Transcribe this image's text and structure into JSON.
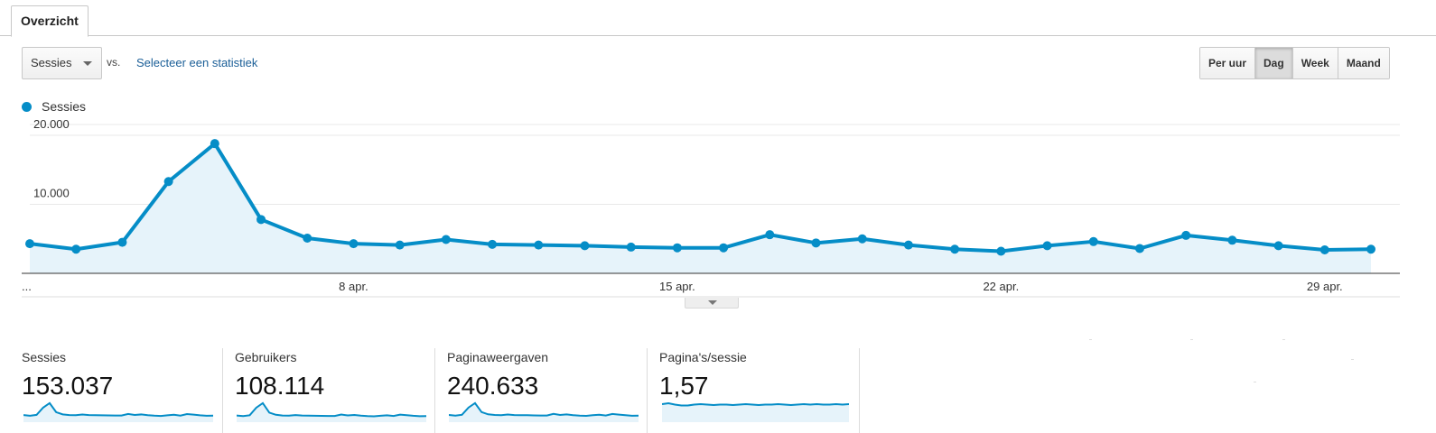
{
  "tabs": [
    {
      "label": "Overzicht",
      "active": true
    }
  ],
  "controls": {
    "metric_selected": "Sessies",
    "vs_label": "vs.",
    "compare_link": "Selecteer een statistiek",
    "granularity": [
      "Per uur",
      "Dag",
      "Week",
      "Maand"
    ],
    "granularity_active": "Dag"
  },
  "legend": {
    "label": "Sessies",
    "color": "#058dc7"
  },
  "chart_data": {
    "type": "line",
    "series": [
      {
        "name": "Sessies",
        "values": [
          4300,
          3500,
          4500,
          13300,
          18800,
          7800,
          5100,
          4300,
          4100,
          4900,
          4200,
          4100,
          4000,
          3800,
          3700,
          3700,
          5600,
          4400,
          5000,
          4100,
          3500,
          3200,
          4000,
          4600,
          3600,
          5500,
          4800,
          4000,
          3400,
          3500
        ]
      }
    ],
    "x_tick_labels": [
      "...",
      "8 apr.",
      "15 apr.",
      "22 apr.",
      "29 apr."
    ],
    "x_tick_indices": [
      0,
      7,
      14,
      21,
      28
    ],
    "y_ticks": [
      10000,
      20000
    ],
    "y_tick_labels": [
      "10.000",
      "20.000"
    ],
    "ylim": [
      0,
      20000
    ],
    "grid": true,
    "area_fill": true
  },
  "scorecards": [
    {
      "label": "Sessies",
      "value": "153.037",
      "spark": [
        4300,
        3500,
        4500,
        13300,
        18800,
        7800,
        5100,
        4300,
        4100,
        4900,
        4200,
        4100,
        4000,
        3800,
        3700,
        3700,
        5600,
        4400,
        5000,
        4100,
        3500,
        3200,
        4000,
        4600,
        3600,
        5500,
        4800,
        4000,
        3400,
        3500
      ]
    },
    {
      "label": "Gebruikers",
      "value": "108.114",
      "spark": [
        3000,
        2500,
        3300,
        10800,
        15400,
        5900,
        3800,
        3000,
        2900,
        3500,
        3000,
        2900,
        2800,
        2700,
        2600,
        2600,
        4000,
        3100,
        3600,
        2900,
        2500,
        2300,
        2800,
        3300,
        2600,
        3900,
        3400,
        2800,
        2400,
        2500
      ]
    },
    {
      "label": "Paginaweergaven",
      "value": "240.633",
      "spark": [
        6800,
        5600,
        7100,
        20600,
        29100,
        12200,
        8000,
        6800,
        6400,
        7700,
        6600,
        6400,
        6300,
        6000,
        5800,
        5800,
        8800,
        6900,
        7900,
        6400,
        5500,
        5000,
        6300,
        7200,
        5700,
        8600,
        7500,
        6300,
        5300,
        5500
      ]
    },
    {
      "label": "Pagina's/sessie",
      "value": "1,57",
      "spark": [
        1.58,
        1.6,
        1.57,
        1.55,
        1.55,
        1.57,
        1.58,
        1.57,
        1.56,
        1.57,
        1.57,
        1.56,
        1.57,
        1.58,
        1.57,
        1.56,
        1.57,
        1.57,
        1.58,
        1.57,
        1.56,
        1.57,
        1.58,
        1.57,
        1.58,
        1.57,
        1.57,
        1.58,
        1.57,
        1.58
      ]
    }
  ]
}
